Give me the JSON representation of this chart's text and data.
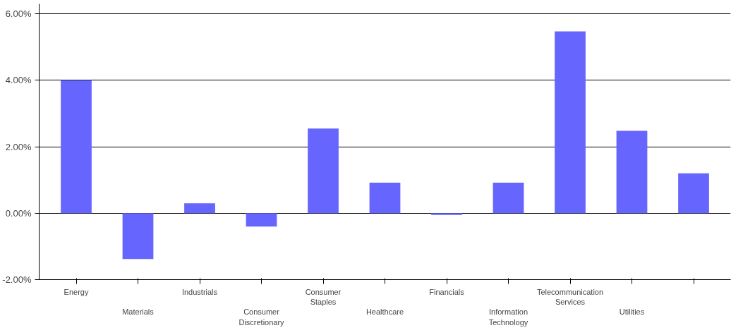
{
  "chart_data": {
    "type": "bar",
    "categories": [
      "Energy",
      "Materials",
      "Industrials",
      "Consumer Discretionary",
      "Consumer Staples",
      "Healthcare",
      "Financials",
      "Information Technology",
      "Telecommunication Services",
      "Utilities",
      null
    ],
    "values": [
      4.0,
      -1.38,
      0.3,
      -0.4,
      2.55,
      0.92,
      -0.05,
      0.92,
      5.47,
      2.48,
      1.2
    ],
    "color": "#6666ff",
    "ylim": [
      -2,
      6.3
    ],
    "yticks": [
      {
        "value": -2,
        "label": "-2.00%"
      },
      {
        "value": 0,
        "label": "0.00%"
      },
      {
        "value": 2,
        "label": "2.00%"
      },
      {
        "value": 4,
        "label": "4.00%"
      },
      {
        "value": 6,
        "label": "6.00%"
      }
    ],
    "grid": "y"
  }
}
